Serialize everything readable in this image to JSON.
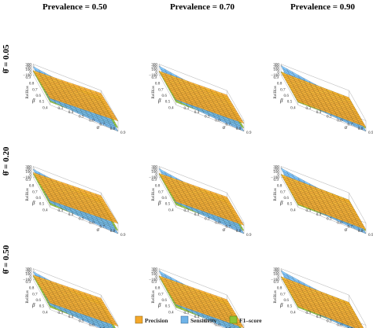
{
  "chart_data": {
    "type": "surface3d",
    "column_titles": [
      "Prevalence = 0.50",
      "Prevalence = 0.70",
      "Prevalence = 0.90"
    ],
    "row_titles": [
      "θ̄ = 0.05",
      "θ̄ = 0.20",
      "θ̄ = 0.50"
    ],
    "z_label": "RelBias",
    "z_ticks": [
      "300",
      "200",
      "100",
      "0",
      "−100"
    ],
    "beta_label": "β",
    "beta_ticks": [
      "0.9",
      "0.8",
      "0.7",
      "0.6",
      "0.5",
      "0.4"
    ],
    "sigma_label": "σ",
    "sigma_ticks": [
      "0.9",
      "0.8",
      "0.7",
      "0.6",
      "0.5",
      "0.4",
      "0.3"
    ],
    "legend": [
      {
        "name": "Precision",
        "color": "#f4a82a"
      },
      {
        "name": "Sensitivity",
        "color": "#6fb3e8"
      },
      {
        "name": "F1–score",
        "color": "#8fc436"
      }
    ],
    "panels": [
      {
        "row": 0,
        "col": 0,
        "precision": [
          60,
          290
        ],
        "sensitivity": [
          -95,
          210
        ],
        "f1": [
          10,
          60
        ]
      },
      {
        "row": 0,
        "col": 1,
        "precision": [
          40,
          200
        ],
        "sensitivity": [
          -95,
          230
        ],
        "f1": [
          5,
          50
        ]
      },
      {
        "row": 0,
        "col": 2,
        "precision": [
          5,
          60
        ],
        "sensitivity": [
          -95,
          250
        ],
        "f1": [
          0,
          30
        ]
      },
      {
        "row": 1,
        "col": 0,
        "precision": [
          70,
          280
        ],
        "sensitivity": [
          -100,
          200
        ],
        "f1": [
          -10,
          50
        ]
      },
      {
        "row": 1,
        "col": 1,
        "precision": [
          40,
          210
        ],
        "sensitivity": [
          -100,
          220
        ],
        "f1": [
          -15,
          40
        ]
      },
      {
        "row": 1,
        "col": 2,
        "precision": [
          0,
          50
        ],
        "sensitivity": [
          -100,
          240
        ],
        "f1": [
          -20,
          30
        ]
      },
      {
        "row": 2,
        "col": 0,
        "precision": [
          60,
          260
        ],
        "sensitivity": [
          -100,
          190
        ],
        "f1": [
          -20,
          60
        ]
      },
      {
        "row": 2,
        "col": 1,
        "precision": [
          30,
          200
        ],
        "sensitivity": [
          -100,
          220
        ],
        "f1": [
          -25,
          40
        ]
      },
      {
        "row": 2,
        "col": 2,
        "precision": [
          0,
          40
        ],
        "sensitivity": [
          -100,
          230
        ],
        "f1": [
          -30,
          20
        ]
      }
    ]
  }
}
